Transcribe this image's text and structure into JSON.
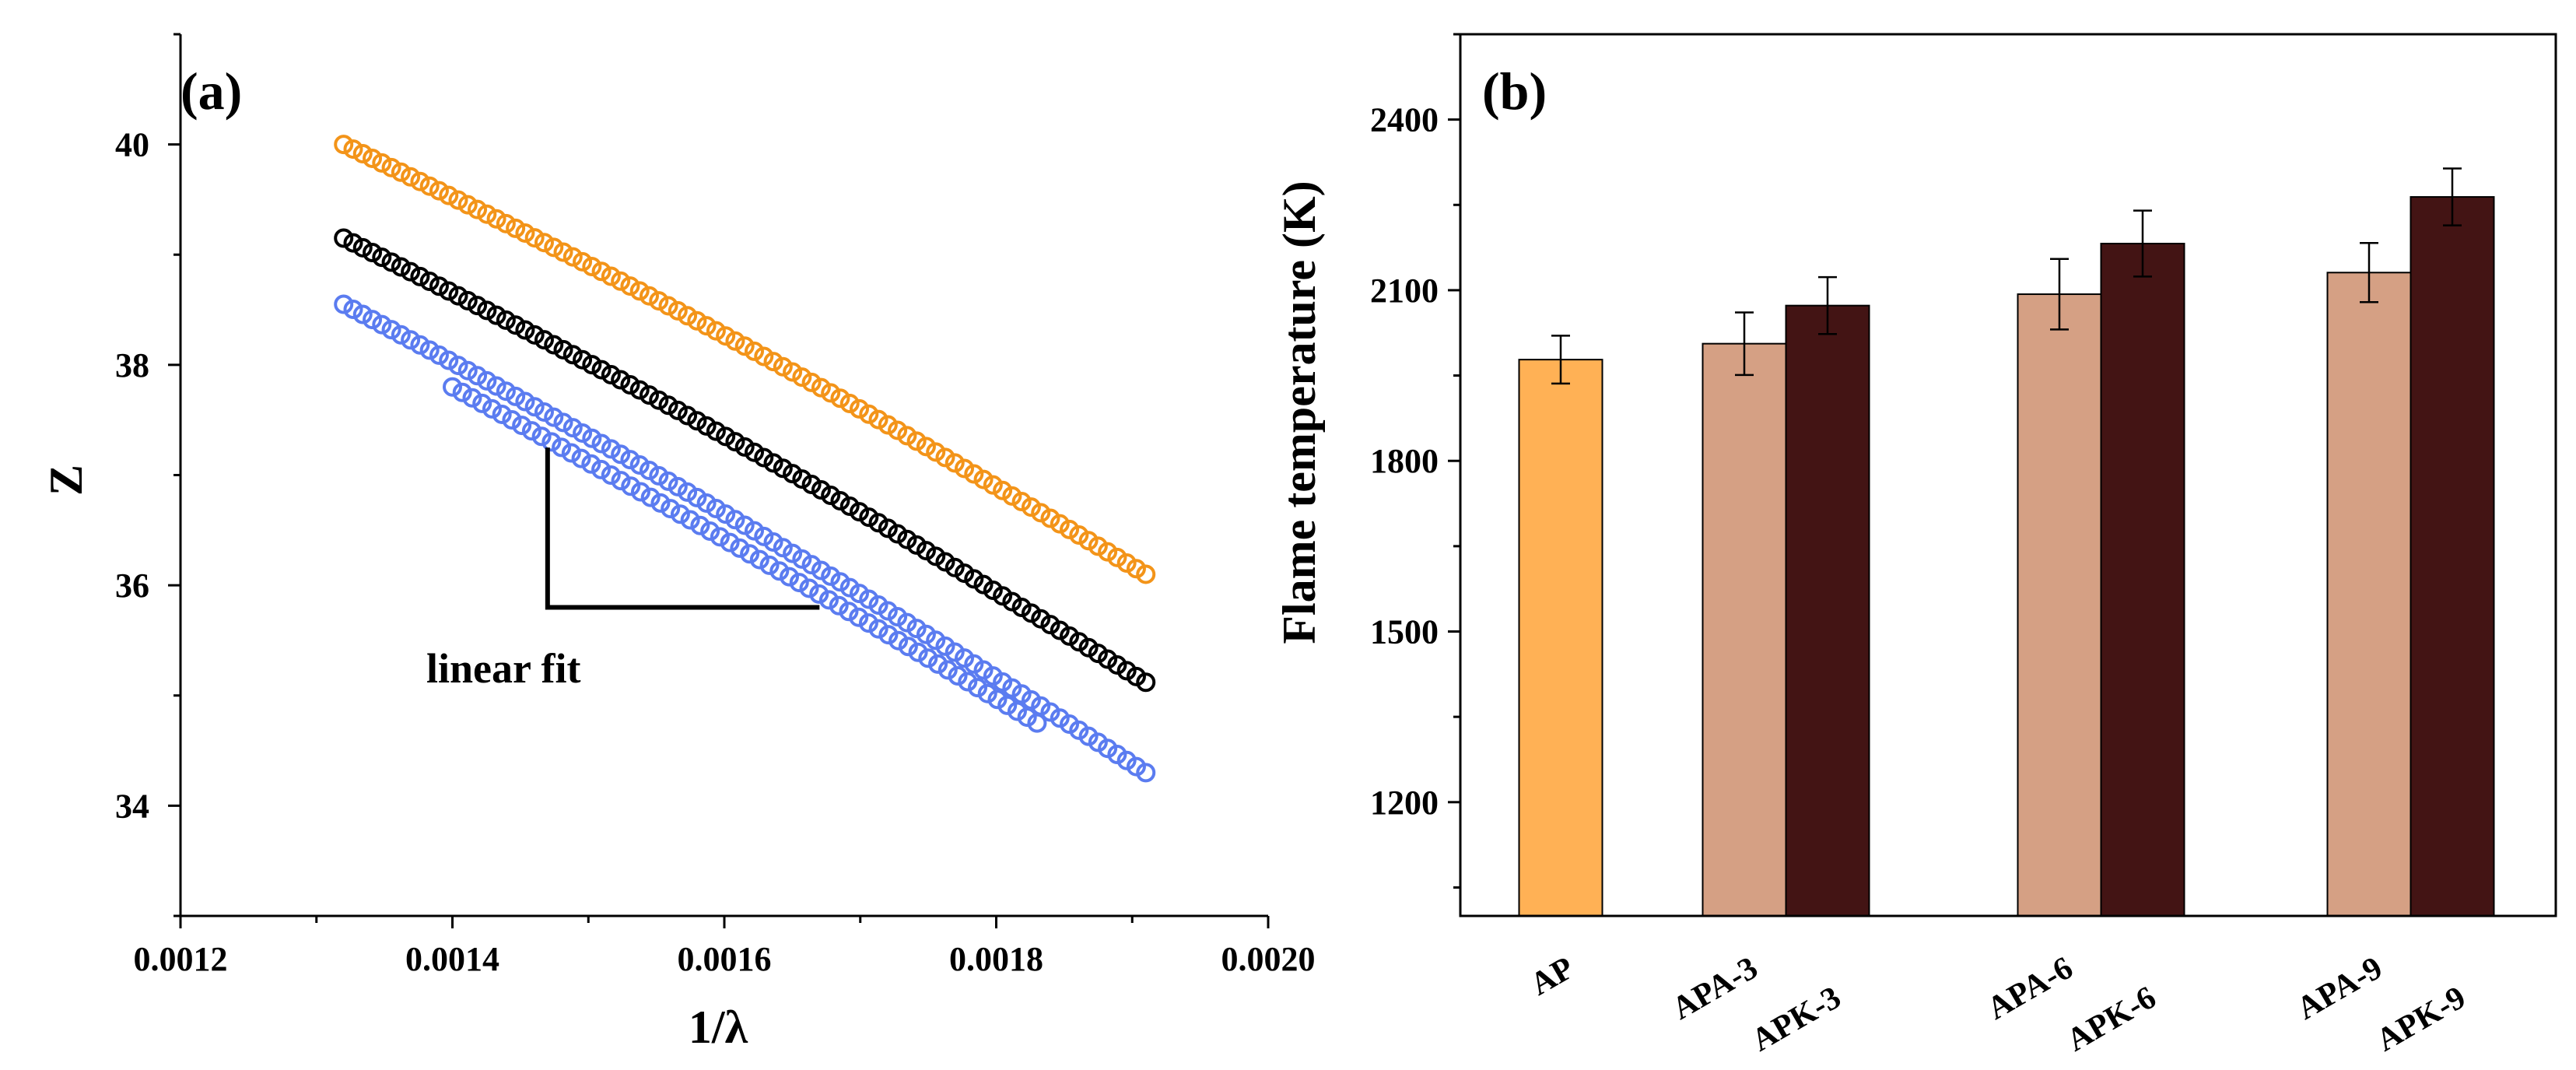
{
  "chart_data": [
    {
      "panel": "(a)",
      "type": "scatter",
      "xlabel": "1/λ",
      "ylabel": "Z",
      "xlim": [
        0.0012,
        0.002
      ],
      "ylim": [
        33,
        41
      ],
      "x_ticks": [
        0.0012,
        0.0014,
        0.0016,
        0.0018,
        0.002
      ],
      "x_tick_labels": [
        "0.0012",
        "0.0014",
        "0.0016",
        "0.0018",
        "0.0020"
      ],
      "y_ticks": [
        34,
        36,
        38,
        40
      ],
      "y_tick_labels": [
        "34",
        "36",
        "38",
        "40"
      ],
      "marker": "open-circle",
      "series": [
        {
          "color": "#f39419",
          "x_range": [
            0.00132,
            0.00191
          ],
          "y_range": [
            40.0,
            36.1
          ],
          "n_points": 85
        },
        {
          "color": "#000000",
          "x_range": [
            0.00132,
            0.00191
          ],
          "y_range": [
            39.15,
            35.12
          ],
          "n_points": 85
        },
        {
          "color": "#5b7cf0",
          "x_range": [
            0.00132,
            0.00191
          ],
          "y_range": [
            38.55,
            34.3
          ],
          "n_points": 85
        },
        {
          "color": "#5b7cf0",
          "x_range": [
            0.0014,
            0.00183
          ],
          "y_range": [
            37.8,
            34.75
          ],
          "n_points": 60
        }
      ],
      "annotation": {
        "text": "linear fit",
        "slope_marker_corner": [
          0.00147,
          35.8
        ],
        "slope_marker_top": [
          0.00147,
          37.25
        ],
        "slope_marker_right": [
          0.00167,
          35.8
        ]
      }
    },
    {
      "panel": "(b)",
      "type": "bar",
      "ylabel": "Flame temperature (K)",
      "ylim": [
        1000,
        2550
      ],
      "y_ticks": [
        1200,
        1500,
        1800,
        2100,
        2400
      ],
      "y_tick_labels": [
        "1200",
        "1500",
        "1800",
        "2100",
        "2400"
      ],
      "bars": [
        {
          "label": "AP",
          "value": 1978,
          "error": 42,
          "color": "#ffb155"
        },
        {
          "label": "APA-3",
          "value": 2006,
          "error": 55,
          "color": "#d5a084"
        },
        {
          "label": "APK-3",
          "value": 2073,
          "error": 50,
          "color": "#431414"
        },
        {
          "label": "APA-6",
          "value": 2093,
          "error": 62,
          "color": "#d5a084"
        },
        {
          "label": "APK-6",
          "value": 2182,
          "error": 58,
          "color": "#431414"
        },
        {
          "label": "APA-9",
          "value": 2131,
          "error": 52,
          "color": "#d5a084"
        },
        {
          "label": "APK-9",
          "value": 2264,
          "error": 50,
          "color": "#431414"
        }
      ]
    }
  ]
}
